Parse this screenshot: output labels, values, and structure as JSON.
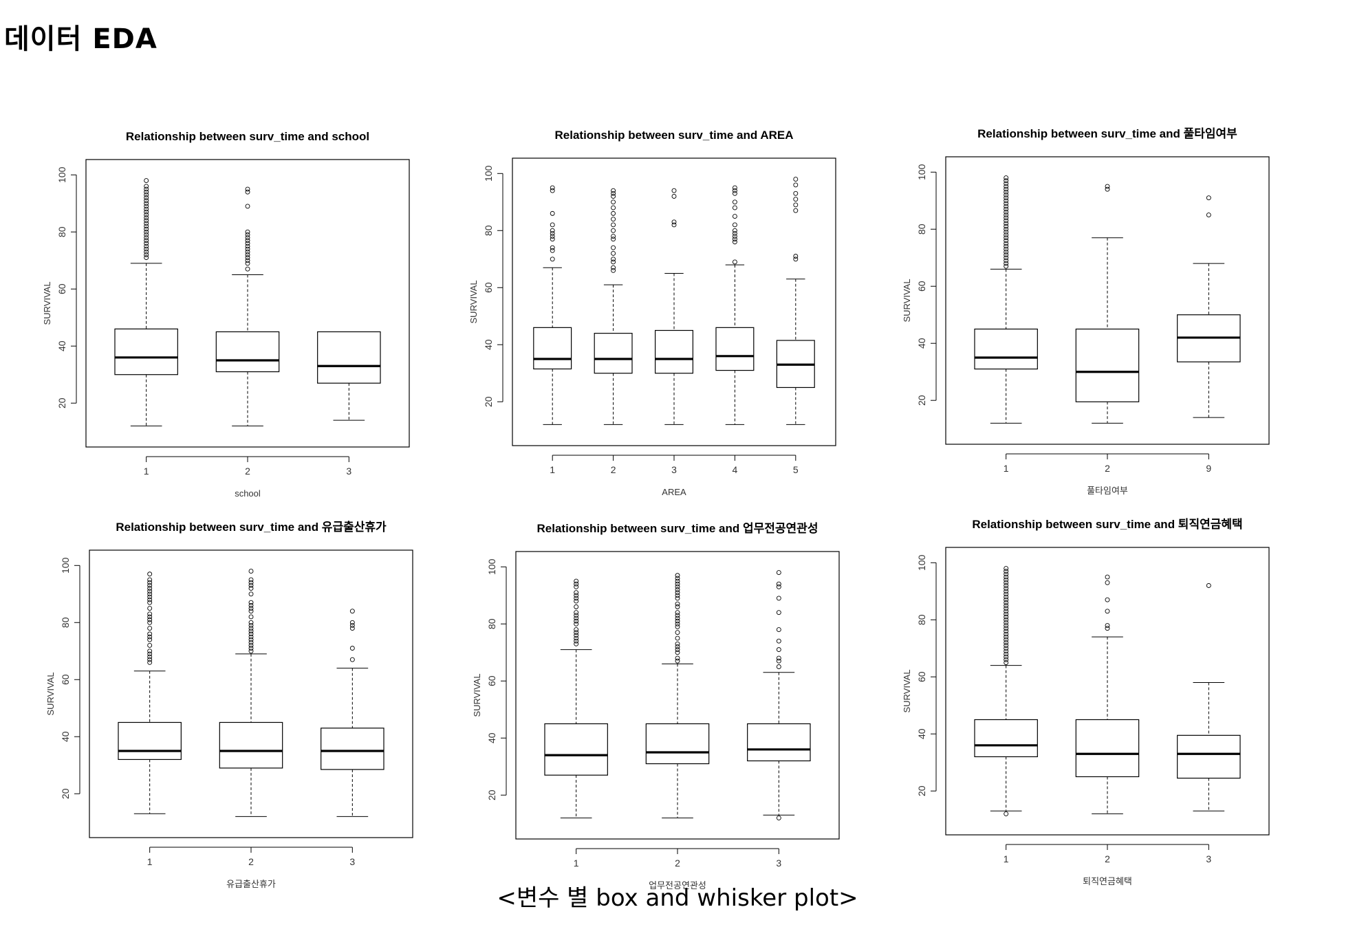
{
  "page": {
    "title": "데이터 EDA",
    "caption": "<변수 별 box and whisker plot>"
  },
  "chart_data": [
    {
      "type": "box",
      "title": "Relationship between surv_time and school",
      "xlabel": "school",
      "ylabel": "SURVIVAL",
      "ylim": [
        8,
        102
      ],
      "yticks": [
        20,
        40,
        60,
        80,
        100
      ],
      "categories": [
        "1",
        "2",
        "3"
      ],
      "boxes": [
        {
          "min": 12,
          "q1": 30,
          "median": 36,
          "q3": 46,
          "max": 69,
          "outliers": [
            71,
            72,
            73,
            74,
            75,
            76,
            77,
            78,
            79,
            80,
            81,
            82,
            83,
            84,
            85,
            86,
            87,
            88,
            89,
            90,
            91,
            92,
            93,
            94,
            95,
            96,
            98
          ]
        },
        {
          "min": 12,
          "q1": 31,
          "median": 35,
          "q3": 45,
          "max": 65,
          "outliers": [
            67,
            69,
            70,
            71,
            72,
            73,
            74,
            75,
            76,
            77,
            78,
            79,
            80,
            89,
            94,
            95
          ]
        },
        {
          "min": 14,
          "q1": 27,
          "median": 33,
          "q3": 45,
          "max": 45,
          "outliers": []
        }
      ]
    },
    {
      "type": "box",
      "title": "Relationship between surv_time and AREA",
      "xlabel": "AREA",
      "ylabel": "SURVIVAL",
      "ylim": [
        8,
        102
      ],
      "yticks": [
        20,
        40,
        60,
        80,
        100
      ],
      "categories": [
        "1",
        "2",
        "3",
        "4",
        "5"
      ],
      "boxes": [
        {
          "min": 12,
          "q1": 31.5,
          "median": 35,
          "q3": 46,
          "max": 67,
          "outliers": [
            70,
            73,
            74,
            77,
            78,
            79,
            80,
            82,
            86,
            94,
            95
          ]
        },
        {
          "min": 12,
          "q1": 30,
          "median": 35,
          "q3": 44,
          "max": 61,
          "outliers": [
            66,
            67,
            69,
            70,
            72,
            74,
            77,
            78,
            80,
            82,
            84,
            86,
            88,
            90,
            92,
            93,
            94
          ]
        },
        {
          "min": 12,
          "q1": 30,
          "median": 35,
          "q3": 45,
          "max": 65,
          "outliers": [
            82,
            83,
            92,
            94
          ]
        },
        {
          "min": 12,
          "q1": 31,
          "median": 36,
          "q3": 46,
          "max": 68,
          "outliers": [
            69,
            76,
            77,
            78,
            79,
            80,
            82,
            85,
            88,
            90,
            93,
            94,
            95
          ]
        },
        {
          "min": 12,
          "q1": 25,
          "median": 33,
          "q3": 41.5,
          "max": 63,
          "outliers": [
            70,
            71,
            87,
            89,
            91,
            93,
            96,
            98
          ]
        }
      ]
    },
    {
      "type": "box",
      "title": "Relationship between surv_time and 풀타임여부",
      "xlabel": "풀타임여부",
      "ylabel": "SURVIVAL",
      "ylim": [
        8,
        102
      ],
      "yticks": [
        20,
        40,
        60,
        80,
        100
      ],
      "categories": [
        "1",
        "2",
        "9"
      ],
      "boxes": [
        {
          "min": 12,
          "q1": 31,
          "median": 35,
          "q3": 45,
          "max": 66,
          "outliers": [
            67,
            68,
            69,
            70,
            71,
            72,
            73,
            74,
            75,
            76,
            77,
            78,
            79,
            80,
            81,
            82,
            83,
            84,
            85,
            86,
            87,
            88,
            89,
            90,
            91,
            92,
            93,
            94,
            95,
            96,
            97,
            98
          ]
        },
        {
          "min": 12,
          "q1": 19.5,
          "median": 30,
          "q3": 45,
          "max": 77,
          "outliers": [
            94,
            95
          ]
        },
        {
          "min": 14,
          "q1": 33.5,
          "median": 42,
          "q3": 50,
          "max": 68,
          "outliers": [
            85,
            91
          ]
        }
      ]
    },
    {
      "type": "box",
      "title": "Relationship between surv_time and 유급출산휴가",
      "xlabel": "유급출산휴가",
      "ylabel": "SURVIVAL",
      "ylim": [
        8,
        102
      ],
      "yticks": [
        20,
        40,
        60,
        80,
        100
      ],
      "categories": [
        "1",
        "2",
        "3"
      ],
      "boxes": [
        {
          "min": 13,
          "q1": 32,
          "median": 35,
          "q3": 45,
          "max": 63,
          "outliers": [
            66,
            67,
            68,
            69,
            70,
            72,
            74,
            75,
            76,
            78,
            80,
            81,
            82,
            83,
            85,
            87,
            88,
            89,
            90,
            91,
            92,
            93,
            94,
            95,
            97
          ]
        },
        {
          "min": 12,
          "q1": 29,
          "median": 35,
          "q3": 45,
          "max": 69,
          "outliers": [
            70,
            71,
            72,
            73,
            74,
            75,
            76,
            77,
            78,
            79,
            80,
            82,
            84,
            85,
            86,
            87,
            90,
            92,
            93,
            94,
            95,
            98
          ]
        },
        {
          "min": 12,
          "q1": 28.5,
          "median": 35,
          "q3": 43,
          "max": 64,
          "outliers": [
            67,
            71,
            78,
            79,
            80,
            84
          ]
        }
      ]
    },
    {
      "type": "box",
      "title": "Relationship between surv_time and 업무전공연관성",
      "xlabel": "업무전공연관성",
      "ylabel": "SURVIVAL",
      "ylim": [
        8,
        102
      ],
      "yticks": [
        20,
        40,
        60,
        80,
        100
      ],
      "categories": [
        "1",
        "2",
        "3"
      ],
      "boxes": [
        {
          "min": 12,
          "q1": 27,
          "median": 34,
          "q3": 45,
          "max": 71,
          "outliers": [
            73,
            74,
            75,
            76,
            77,
            78,
            80,
            81,
            82,
            83,
            84,
            86,
            88,
            89,
            90,
            91,
            93,
            94,
            95
          ]
        },
        {
          "min": 12,
          "q1": 31,
          "median": 35,
          "q3": 45,
          "max": 66,
          "outliers": [
            67,
            68,
            70,
            71,
            72,
            73,
            75,
            77,
            79,
            80,
            81,
            82,
            83,
            84,
            86,
            87,
            89,
            90,
            91,
            92,
            93,
            94,
            95,
            96,
            97
          ]
        },
        {
          "min": 13,
          "q1": 32,
          "median": 36,
          "q3": 45,
          "max": 63,
          "outliers": [
            12,
            65,
            67,
            68,
            71,
            74,
            78,
            84,
            89,
            93,
            94,
            98
          ]
        }
      ]
    },
    {
      "type": "box",
      "title": "Relationship between surv_time and 퇴직연금혜택",
      "xlabel": "퇴직연금혜택",
      "ylabel": "SURVIVAL",
      "ylim": [
        8,
        102
      ],
      "yticks": [
        20,
        40,
        60,
        80,
        100
      ],
      "categories": [
        "1",
        "2",
        "3"
      ],
      "boxes": [
        {
          "min": 13,
          "q1": 32,
          "median": 36,
          "q3": 45,
          "max": 64,
          "outliers": [
            12,
            65,
            66,
            67,
            68,
            69,
            70,
            71,
            72,
            73,
            74,
            75,
            76,
            77,
            78,
            79,
            80,
            81,
            82,
            83,
            84,
            85,
            86,
            87,
            88,
            89,
            90,
            91,
            92,
            93,
            94,
            95,
            96,
            97,
            98
          ]
        },
        {
          "min": 12,
          "q1": 25,
          "median": 33,
          "q3": 45,
          "max": 74,
          "outliers": [
            77,
            78,
            83,
            87,
            93,
            95
          ]
        },
        {
          "min": 13,
          "q1": 24.5,
          "median": 33,
          "q3": 39.5,
          "max": 58,
          "outliers": [
            92
          ]
        }
      ]
    }
  ]
}
